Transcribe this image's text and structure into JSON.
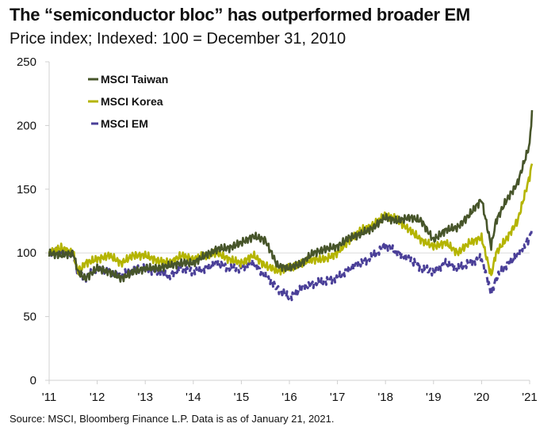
{
  "title": "The “semiconductor bloc” has outperformed broader EM",
  "subtitle": "Price index; Indexed: 100 = December 31, 2010",
  "source": "Source: MSCI, Bloomberg Finance L.P. Data is as of January 21, 2021.",
  "chart_data": {
    "type": "line",
    "title": "The “semiconductor bloc” has outperformed broader EM",
    "ylabel": "Price index",
    "xlabel": "",
    "ylim": [
      0,
      250
    ],
    "xlim": [
      2011,
      2021
    ],
    "yticks": [
      0,
      50,
      100,
      150,
      200,
      250
    ],
    "ytick_labels": [
      "0",
      "50",
      "100",
      "150",
      "200",
      "250"
    ],
    "xticks": [
      2011,
      2012,
      2013,
      2014,
      2015,
      2016,
      2017,
      2018,
      2019,
      2020,
      2021
    ],
    "xtick_labels": [
      "'11",
      "'12",
      "'13",
      "'14",
      "'15",
      "'16",
      "'17",
      "'18",
      "'19",
      "'20",
      "'21"
    ],
    "gridlines": [
      100
    ],
    "legend_position": "top-left",
    "x": [
      2011,
      2011.25,
      2011.5,
      2011.6,
      2011.75,
      2012,
      2012.25,
      2012.5,
      2012.75,
      2013,
      2013.25,
      2013.5,
      2013.75,
      2014,
      2014.25,
      2014.5,
      2014.75,
      2015,
      2015.25,
      2015.5,
      2015.75,
      2016,
      2016.25,
      2016.5,
      2016.75,
      2017,
      2017.25,
      2017.5,
      2017.75,
      2018,
      2018.25,
      2018.5,
      2018.75,
      2019,
      2019.25,
      2019.5,
      2019.75,
      2020,
      2020.2,
      2020.3,
      2020.5,
      2020.75,
      2021,
      2021.05
    ],
    "series": [
      {
        "name": "MSCI Taiwan",
        "color": "#47552a",
        "dashed": false,
        "values": [
          100,
          98,
          100,
          85,
          80,
          88,
          85,
          80,
          85,
          88,
          88,
          90,
          92,
          92,
          98,
          103,
          104,
          108,
          113,
          110,
          90,
          88,
          92,
          100,
          103,
          105,
          112,
          115,
          120,
          128,
          125,
          128,
          125,
          110,
          118,
          120,
          130,
          142,
          105,
          125,
          140,
          155,
          185,
          212
        ]
      },
      {
        "name": "MSCI Korea",
        "color": "#b4b400",
        "dashed": false,
        "values": [
          100,
          104,
          100,
          85,
          92,
          95,
          98,
          92,
          98,
          98,
          94,
          92,
          98,
          95,
          98,
          100,
          95,
          92,
          98,
          90,
          86,
          88,
          92,
          95,
          95,
          100,
          110,
          118,
          122,
          130,
          126,
          118,
          110,
          105,
          108,
          100,
          108,
          112,
          82,
          100,
          110,
          125,
          160,
          170
        ]
      },
      {
        "name": "MSCI EM",
        "color": "#4a3f98",
        "dashed": true,
        "values": [
          100,
          102,
          98,
          85,
          80,
          88,
          85,
          82,
          87,
          88,
          85,
          82,
          88,
          85,
          88,
          92,
          88,
          88,
          92,
          82,
          72,
          65,
          72,
          76,
          78,
          80,
          88,
          92,
          98,
          106,
          100,
          95,
          88,
          85,
          92,
          88,
          92,
          96,
          68,
          80,
          90,
          98,
          112,
          120
        ]
      }
    ]
  }
}
